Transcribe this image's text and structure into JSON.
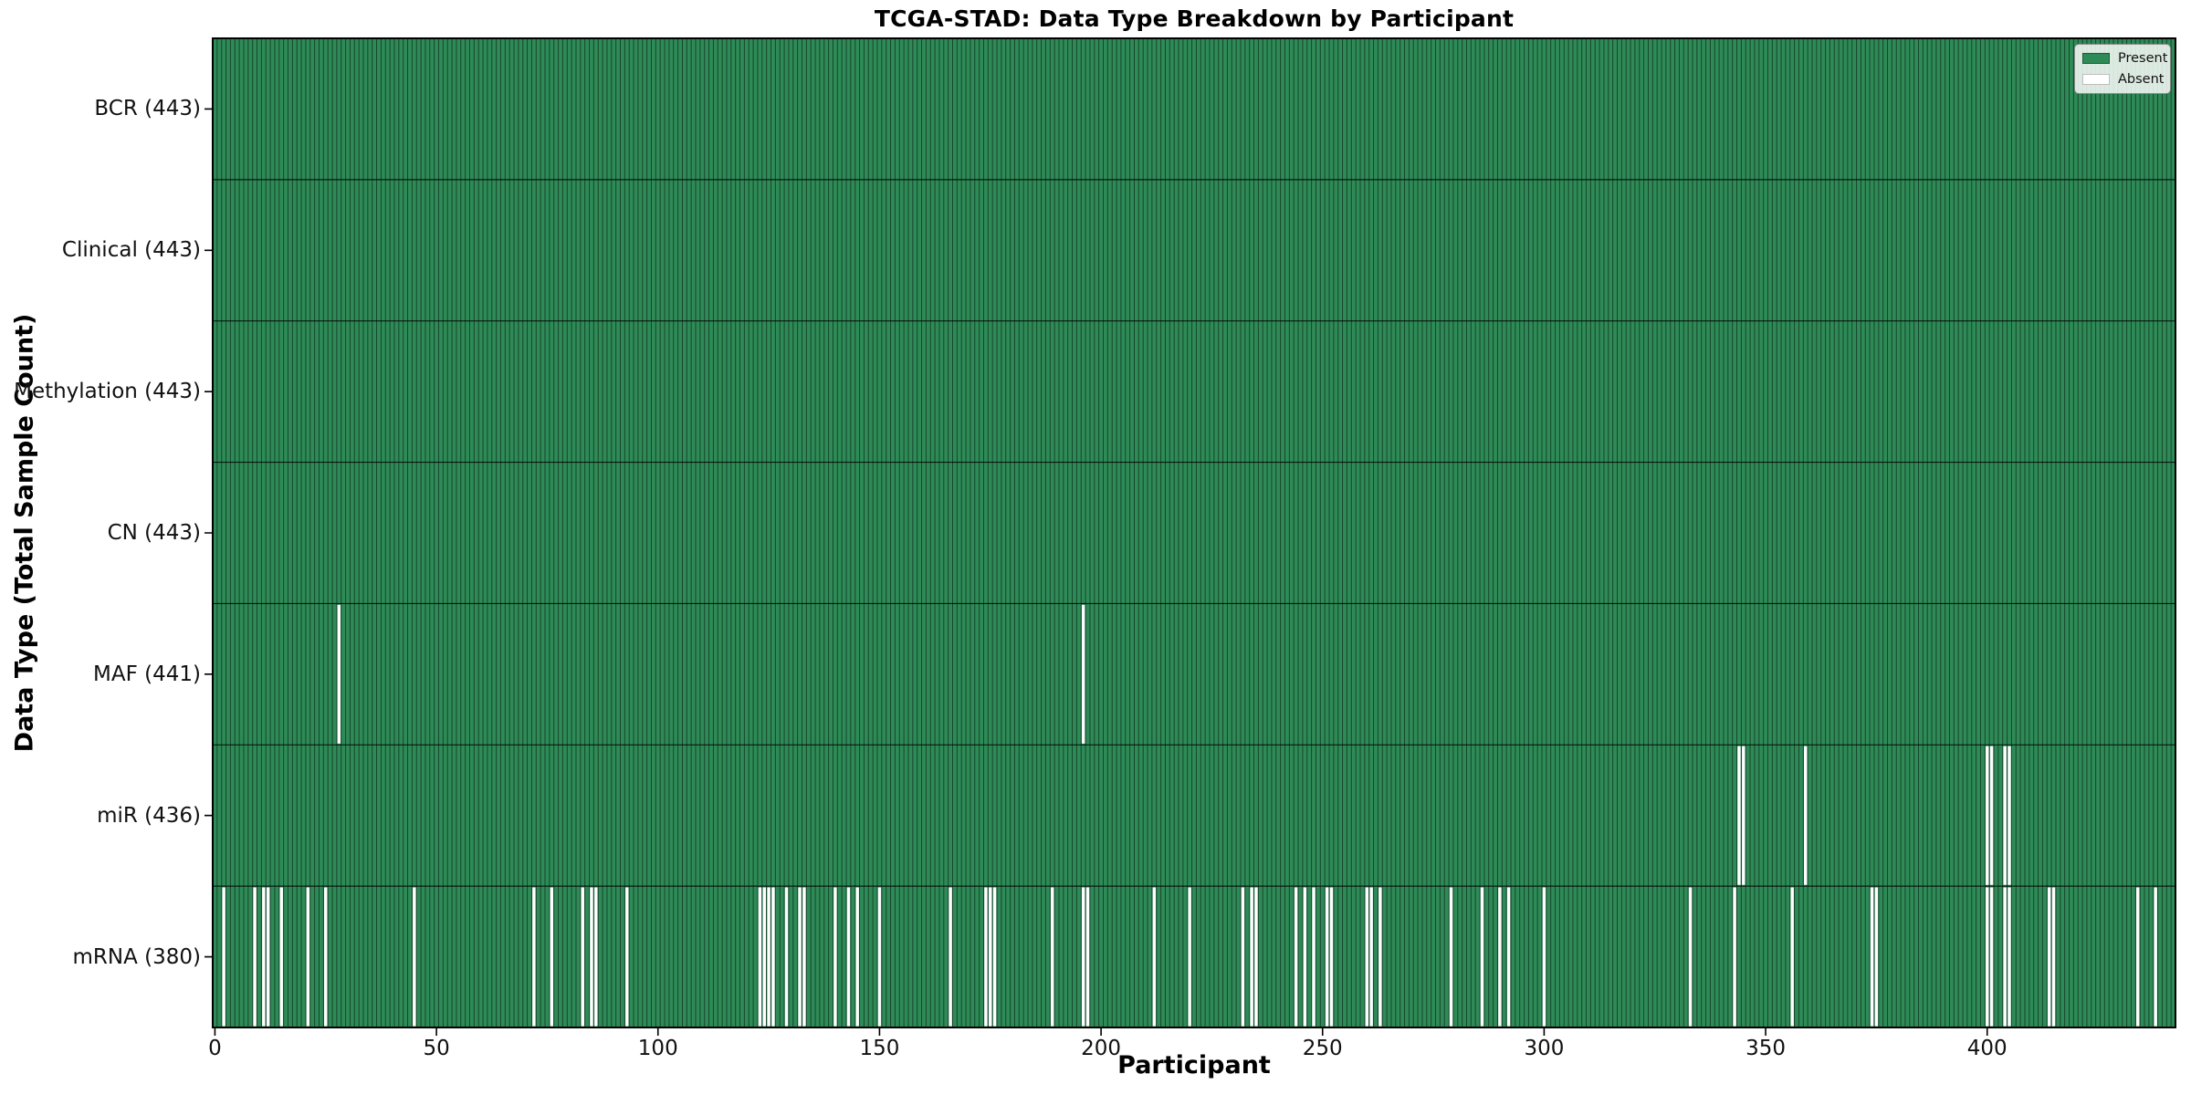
{
  "title": "TCGA-STAD: Data Type Breakdown by Participant",
  "chart_data": {
    "type": "heatmap",
    "title": "TCGA-STAD: Data Type Breakdown by Participant",
    "xlabel": "Participant",
    "ylabel": "Data Type (Total Sample Count)",
    "n_participants": 443,
    "x_ticks": [
      0,
      50,
      100,
      150,
      200,
      250,
      300,
      350,
      400
    ],
    "x_range": [
      0,
      443
    ],
    "grid": false,
    "legend": {
      "position": "upper right",
      "items": [
        {
          "label": "Present",
          "color": "#2e8b57"
        },
        {
          "label": "Absent",
          "color": "#ffffff"
        }
      ]
    },
    "colors": {
      "present": "#2e8b57",
      "absent": "#ffffff",
      "bar_edge": "rgba(0,0,0,0.5)",
      "row_divider": "rgba(0,0,0,0.8)",
      "plot_border": "#000000"
    },
    "rows": [
      {
        "label": "BCR (443)",
        "name": "BCR",
        "total": 443,
        "absent_participants": []
      },
      {
        "label": "Clinical (443)",
        "name": "Clinical",
        "total": 443,
        "absent_participants": []
      },
      {
        "label": "Methylation (443)",
        "name": "Methylation",
        "total": 443,
        "absent_participants": []
      },
      {
        "label": "CN (443)",
        "name": "CN",
        "total": 443,
        "absent_participants": []
      },
      {
        "label": "MAF (441)",
        "name": "MAF",
        "total": 441,
        "absent_participants": [
          28,
          196
        ]
      },
      {
        "label": "miR (436)",
        "name": "miR",
        "total": 436,
        "absent_participants": [
          344,
          345,
          359,
          400,
          401,
          404,
          405
        ]
      },
      {
        "label": "mRNA (380)",
        "name": "mRNA",
        "total": 380,
        "absent_participants": [
          2,
          9,
          11,
          12,
          15,
          21,
          25,
          45,
          72,
          76,
          83,
          85,
          86,
          93,
          123,
          124,
          125,
          126,
          129,
          132,
          133,
          140,
          143,
          145,
          150,
          166,
          174,
          175,
          176,
          189,
          196,
          197,
          212,
          220,
          232,
          234,
          235,
          244,
          246,
          248,
          251,
          252,
          260,
          261,
          263,
          279,
          286,
          290,
          292,
          300,
          333,
          343,
          356,
          374,
          375,
          400,
          401,
          404,
          405,
          414,
          415,
          434,
          438
        ]
      }
    ]
  }
}
